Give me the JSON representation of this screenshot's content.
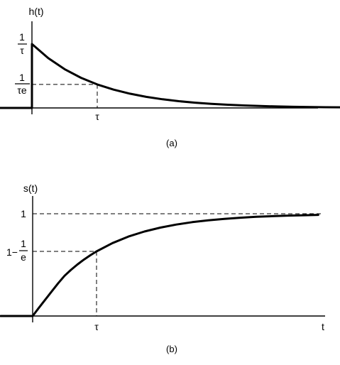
{
  "chart_data": [
    {
      "type": "line",
      "panel_label": "(a)",
      "ylabel": "h(t)",
      "xlabel": "",
      "x_ticks": [
        {
          "label": "τ"
        }
      ],
      "y_ticks": [
        {
          "numerator": "1",
          "denominator": "τ"
        },
        {
          "numerator": "1",
          "denominator": "τe"
        }
      ],
      "series": [
        {
          "points": [
            [
              -0.7,
              0
            ],
            [
              0,
              0
            ],
            [
              0,
              1
            ],
            [
              0.25,
              0.7788
            ],
            [
              0.5,
              0.6065
            ],
            [
              0.75,
              0.4724
            ],
            [
              1,
              0.3679
            ],
            [
              1.25,
              0.2865
            ],
            [
              1.5,
              0.2231
            ],
            [
              1.75,
              0.1738
            ],
            [
              2,
              0.1353
            ],
            [
              2.25,
              0.1054
            ],
            [
              2.5,
              0.0821
            ],
            [
              2.75,
              0.0639
            ],
            [
              3,
              0.0498
            ],
            [
              3.25,
              0.0388
            ],
            [
              3.5,
              0.0302
            ],
            [
              3.75,
              0.0235
            ],
            [
              4,
              0.0183
            ],
            [
              4.5,
              0.0111
            ],
            [
              5,
              0.0067
            ]
          ]
        }
      ],
      "guides": [
        {
          "x": 1,
          "y": 0.3679
        }
      ],
      "xlim": [
        -0.7,
        5
      ],
      "ylim": [
        0,
        1.3
      ]
    },
    {
      "type": "line",
      "panel_label": "(b)",
      "ylabel": "s(t)",
      "xlabel": "t",
      "x_ticks": [
        {
          "label": "τ"
        }
      ],
      "y_ticks": [
        {
          "label": "1"
        },
        {
          "prefix": "1−",
          "numerator": "1",
          "denominator": "e"
        }
      ],
      "series": [
        {
          "points": [
            [
              -0.5,
              0
            ],
            [
              0,
              0
            ],
            [
              0.1,
              0.0817
            ],
            [
              0.2,
              0.1617
            ],
            [
              0.3,
              0.2416
            ],
            [
              0.4,
              0.3208
            ],
            [
              0.5,
              0.3935
            ],
            [
              0.6,
              0.4512
            ],
            [
              0.7,
              0.5034
            ],
            [
              0.8,
              0.5507
            ],
            [
              0.9,
              0.5934
            ],
            [
              1,
              0.6321
            ],
            [
              1.25,
              0.7135
            ],
            [
              1.5,
              0.7769
            ],
            [
              1.75,
              0.8262
            ],
            [
              2,
              0.8647
            ],
            [
              2.25,
              0.8946
            ],
            [
              2.5,
              0.9179
            ],
            [
              2.75,
              0.9361
            ],
            [
              3,
              0.9502
            ],
            [
              3.25,
              0.9612
            ],
            [
              3.5,
              0.9698
            ],
            [
              3.75,
              0.9765
            ],
            [
              4,
              0.9817
            ],
            [
              4.25,
              0.9857
            ],
            [
              4.47,
              0.9886
            ]
          ]
        }
      ],
      "guides": [
        {
          "x": 1,
          "y": 0.6321
        },
        {
          "y": 1
        }
      ],
      "xlim": [
        -0.5,
        4.47
      ],
      "ylim": [
        0,
        1.1
      ]
    }
  ]
}
